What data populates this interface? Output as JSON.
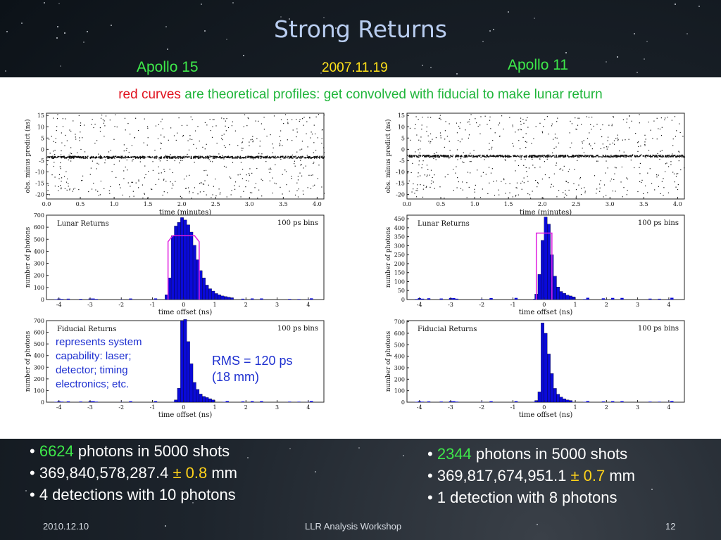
{
  "slide": {
    "title": "Strong Returns",
    "label_left": "Apollo 15",
    "label_date": "2007.11.19",
    "label_right": "Apollo 11",
    "subtitle_red": "red curves",
    "subtitle_rest": " are theoretical profiles: get convolved with fiducial to make lunar return",
    "annotation": [
      "represents system",
      "capability: laser;",
      "detector; timing",
      "electronics; etc."
    ],
    "rms": [
      "RMS = 120 ps",
      "(18 mm)"
    ],
    "left_stats": {
      "photons_count": "6624",
      "photons_rest": " photons in 5000 shots",
      "range_value": "369,840,578,287.4 ",
      "pm": "±",
      "uncertainty": " 0.8",
      "unit": " mm",
      "detections": "4 detections with 10 photons"
    },
    "right_stats": {
      "photons_count": "2344",
      "photons_rest": " photons in 5000 shots",
      "range_value": "369,817,674,951.1 ",
      "pm": "±",
      "uncertainty": " 0.7",
      "unit": " mm",
      "detections": "1 detection with 8 photons"
    },
    "footer": {
      "date": "2010.12.10",
      "event": "LLR Analysis Workshop",
      "page": "12"
    },
    "bullet": "•",
    "colors": {
      "title": "#b9cdf0",
      "green": "#1fb53a",
      "red": "#e0121e",
      "yellow": "#ffd21a",
      "bar": "#0a0ad8",
      "model": "#e020e0"
    }
  },
  "chart_data": [
    {
      "id": "a15-scatter",
      "type": "scatter",
      "xlabel": "time (minutes)",
      "ylabel": "obs. minus predict (ns)",
      "xticks": [
        "0.0",
        "0.5",
        "1.0",
        "1.5",
        "2.0",
        "2.5",
        "3.0",
        "3.5",
        "4.0"
      ],
      "yticks": [
        "15",
        "10",
        "5",
        "0",
        "-5",
        "-10",
        "-15",
        "-20"
      ],
      "xlim": [
        0,
        4.1
      ],
      "ylim": [
        -22,
        16
      ],
      "return_band_ns": -3.3
    },
    {
      "id": "a15-lunar",
      "type": "bar",
      "title": "Lunar Returns",
      "note": "100 ps bins",
      "xlabel": "time offset (ns)",
      "ylabel": "number of photons",
      "xticks": [
        "-4",
        "-3",
        "-2",
        "-1",
        "0",
        "1",
        "2",
        "3",
        "4"
      ],
      "yticks": [
        "700",
        "600",
        "500",
        "400",
        "300",
        "200",
        "100",
        "0"
      ],
      "xlim": [
        -4.4,
        4.5
      ],
      "ylim": [
        0,
        700
      ],
      "bin_start": -0.6,
      "bin_width": 0.1,
      "values": [
        40,
        180,
        530,
        610,
        640,
        680,
        660,
        620,
        560,
        450,
        330,
        240,
        180,
        120,
        90,
        70,
        50,
        40,
        30,
        25,
        20,
        15
      ],
      "model": {
        "x": [
          -0.5,
          -0.5,
          -0.35,
          0.35,
          0.5,
          0.5
        ],
        "y": [
          0,
          480,
          530,
          530,
          480,
          0
        ]
      }
    },
    {
      "id": "a15-fiducial",
      "type": "bar",
      "title": "Fiducial Returns",
      "note": "100 ps bins",
      "xlabel": "time offset (ns)",
      "ylabel": "number of photons",
      "xticks": [
        "-4",
        "-3",
        "-2",
        "-1",
        "0",
        "1",
        "2",
        "3",
        "4"
      ],
      "yticks": [
        "700",
        "600",
        "500",
        "400",
        "300",
        "200",
        "100",
        "0"
      ],
      "xlim": [
        -4.4,
        4.5
      ],
      "ylim": [
        0,
        700
      ],
      "bin_start": -0.3,
      "bin_width": 0.1,
      "values": [
        20,
        120,
        700,
        710,
        520,
        330,
        170,
        110,
        70,
        50,
        40,
        30,
        20
      ]
    },
    {
      "id": "a11-scatter",
      "type": "scatter",
      "xlabel": "time (minutes)",
      "ylabel": "obs. minus predict (ns)",
      "xticks": [
        "0.0",
        "0.5",
        "1.0",
        "1.5",
        "2.0",
        "2.5",
        "3.0",
        "3.5",
        "4.0"
      ],
      "yticks": [
        "15",
        "10",
        "5",
        "0",
        "-5",
        "-10",
        "-15",
        "-20"
      ],
      "xlim": [
        0,
        4.1
      ],
      "ylim": [
        -22,
        16
      ],
      "return_band_ns": -2.8
    },
    {
      "id": "a11-lunar",
      "type": "bar",
      "title": "Lunar Returns",
      "note": "100 ps bins",
      "xlabel": "time offset (ns)",
      "ylabel": "number of photons",
      "xticks": [
        "-4",
        "-3",
        "-2",
        "-1",
        "0",
        "1",
        "2",
        "3",
        "4"
      ],
      "yticks": [
        "450",
        "400",
        "350",
        "300",
        "250",
        "200",
        "150",
        "100",
        "50",
        "0"
      ],
      "xlim": [
        -4.4,
        4.5
      ],
      "ylim": [
        0,
        470
      ],
      "bin_start": -0.3,
      "bin_width": 0.1,
      "values": [
        30,
        140,
        330,
        460,
        420,
        250,
        130,
        70,
        45,
        35,
        25,
        20,
        15
      ],
      "model": {
        "x": [
          -0.25,
          -0.25,
          0.25,
          0.25
        ],
        "y": [
          0,
          370,
          370,
          0
        ]
      }
    },
    {
      "id": "a11-fiducial",
      "type": "bar",
      "title": "Fiducial Returns",
      "note": "100 ps bins",
      "xlabel": "time offset (ns)",
      "ylabel": "number of photons",
      "xticks": [
        "-4",
        "-3",
        "-2",
        "-1",
        "0",
        "1",
        "2",
        "3",
        "4"
      ],
      "yticks": [
        "700",
        "600",
        "500",
        "400",
        "300",
        "200",
        "100",
        "0"
      ],
      "xlim": [
        -4.4,
        4.5
      ],
      "ylim": [
        0,
        710
      ],
      "bin_start": -0.3,
      "bin_width": 0.1,
      "values": [
        15,
        90,
        690,
        600,
        420,
        250,
        120,
        70,
        45,
        30,
        20,
        15
      ]
    }
  ]
}
